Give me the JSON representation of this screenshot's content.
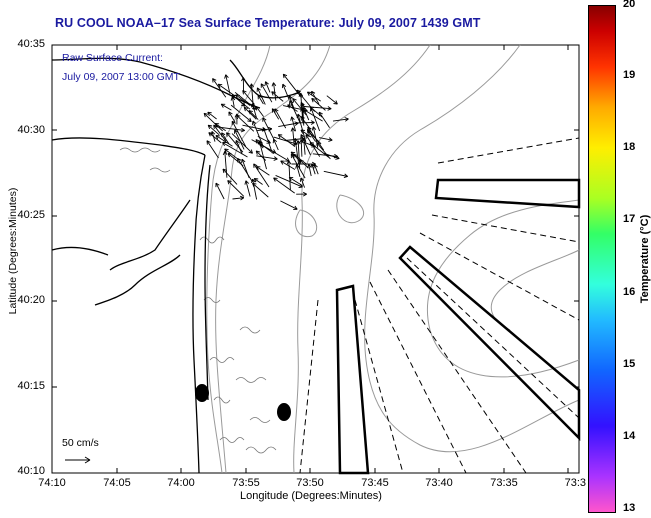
{
  "title": "RU COOL  NOAA–17  Sea Surface Temperature:  July 09, 2007 1439 GMT",
  "annotation": {
    "line1": "Raw Surface Current:",
    "line2": "July 09, 2007 13:00 GMT"
  },
  "scale": {
    "label": "50 cm/s"
  },
  "axes": {
    "xlabel": "Longitude (Degrees:Minutes)",
    "ylabel": "Latitude (Degrees:Minutes)",
    "xticks": [
      "74:10",
      "74:05",
      "74:00",
      "73:55",
      "73:50",
      "73:45",
      "73:40",
      "73:35",
      "73:3"
    ],
    "yticks": [
      "40:35",
      "40:30",
      "40:25",
      "40:20",
      "40:15",
      "40:10"
    ]
  },
  "colorbar": {
    "label": "Temperature (°C)",
    "ticks": [
      "20",
      "19",
      "18",
      "17",
      "16",
      "15",
      "14",
      "13"
    ],
    "range": [
      13,
      20
    ]
  },
  "colors": {
    "title": "#1a1aa0",
    "coast": "#000000",
    "bathymetry": "#999999"
  }
}
